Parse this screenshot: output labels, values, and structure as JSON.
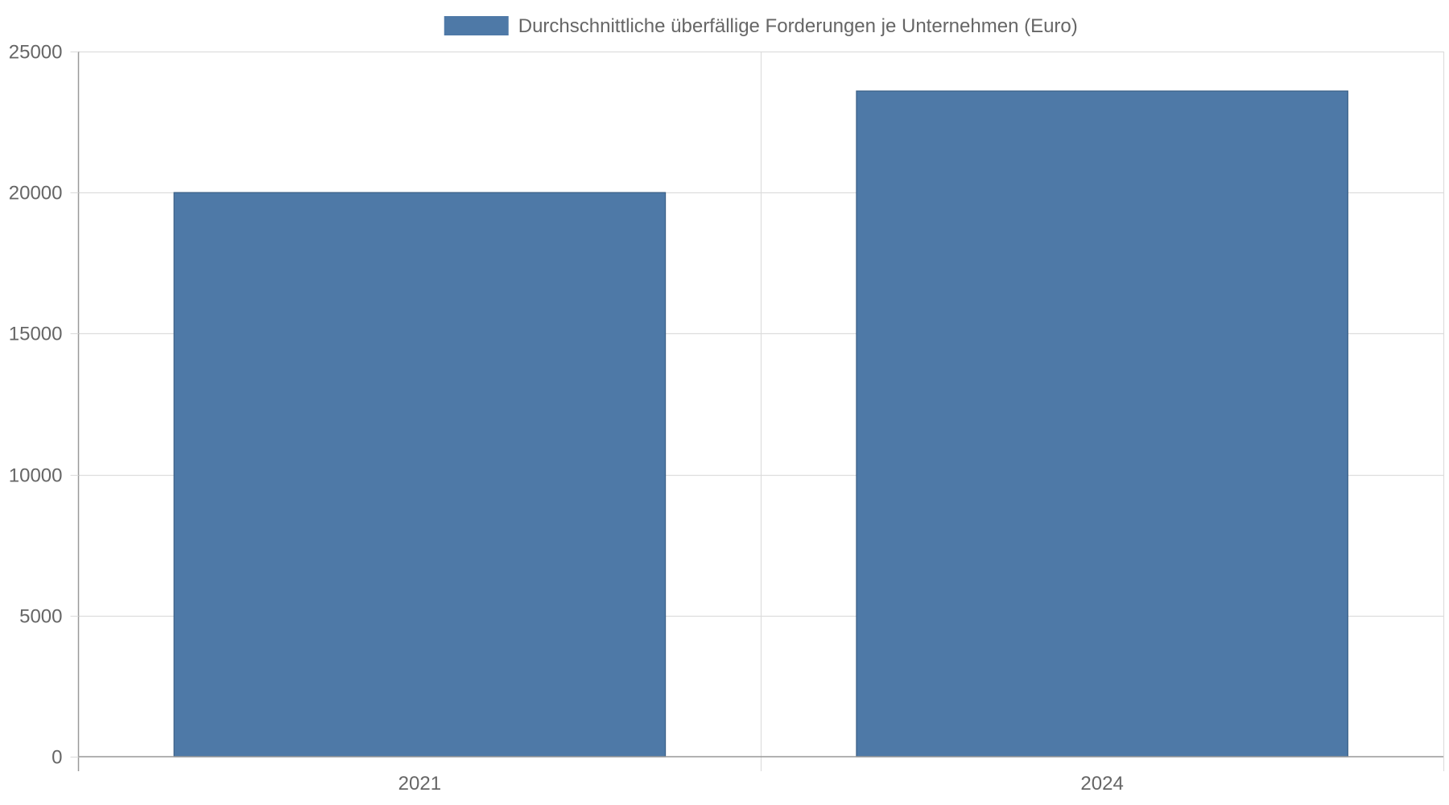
{
  "chart_data": {
    "type": "bar",
    "categories": [
      "2021",
      "2024"
    ],
    "series": [
      {
        "name": "Durchschnittliche überfällige Forderungen je Unternehmen (Euro)",
        "values": [
          20000,
          23600
        ]
      }
    ],
    "title": "",
    "xlabel": "",
    "ylabel": "",
    "ylim": [
      0,
      25000
    ],
    "yticks": [
      0,
      5000,
      10000,
      15000,
      20000,
      25000
    ],
    "grid": true,
    "legend": "top-center",
    "colors": {
      "bar_fill": "#4e79a7",
      "bar_stroke": "#3a5f86",
      "grid": "#dddddd",
      "axis": "#999999",
      "text": "#666666"
    }
  }
}
